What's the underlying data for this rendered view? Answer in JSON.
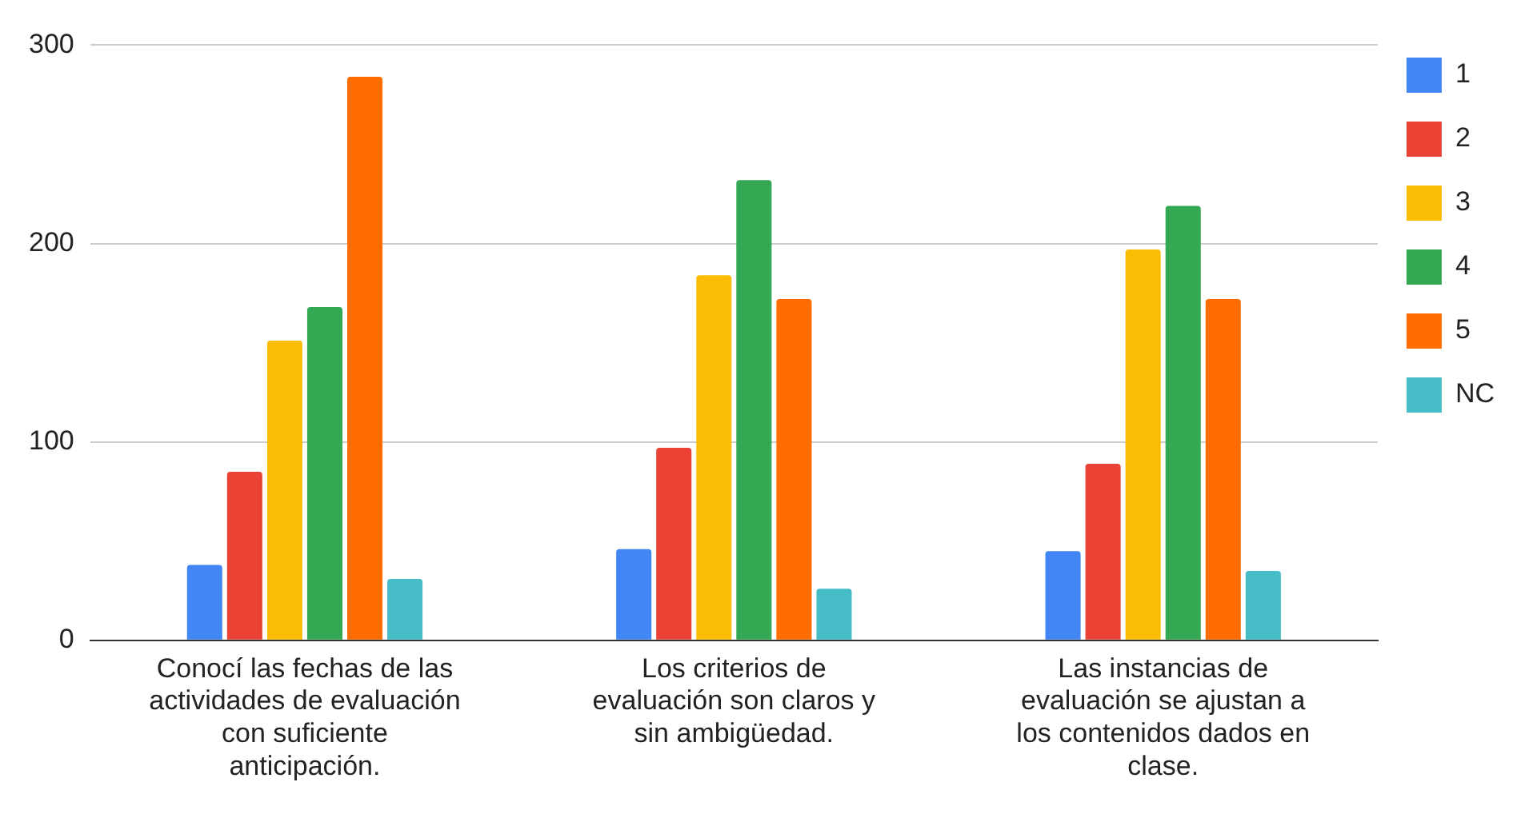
{
  "chart_data": {
    "type": "bar",
    "categories": [
      "Conocí las fechas de las actividades de evaluación con suficiente anticipación.",
      "Los criterios de evaluación son claros y sin ambigüedad.",
      "Las instancias de evaluación se ajustan a los contenidos dados en clase."
    ],
    "series": [
      {
        "name": "1",
        "color": "#4285f4",
        "values": [
          38,
          46,
          45
        ]
      },
      {
        "name": "2",
        "color": "#ea4335",
        "values": [
          85,
          97,
          89
        ]
      },
      {
        "name": "3",
        "color": "#fbbc04",
        "values": [
          151,
          184,
          197
        ]
      },
      {
        "name": "4",
        "color": "#34a853",
        "values": [
          168,
          232,
          219
        ]
      },
      {
        "name": "5",
        "color": "#ff6d01",
        "values": [
          284,
          172,
          172
        ]
      },
      {
        "name": "NC",
        "color": "#46bdc6",
        "values": [
          31,
          26,
          35
        ]
      }
    ],
    "ylim": [
      0,
      300
    ],
    "yticks": [
      0,
      100,
      200,
      300
    ],
    "grid": "y",
    "legend": "right"
  }
}
